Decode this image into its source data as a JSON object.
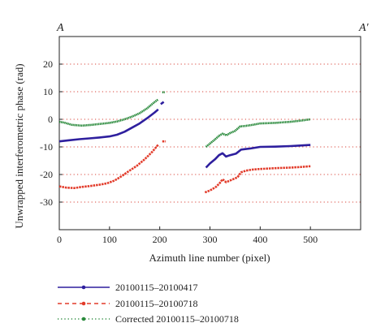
{
  "corner_labels": {
    "left": "A",
    "right": "A′"
  },
  "chart_data": {
    "type": "line",
    "title": "",
    "xlabel": "Azimuth line number (pixel)",
    "ylabel": "Unwrapped interferometric phase (rad)",
    "xlim": [
      0,
      600
    ],
    "ylim": [
      -40,
      30
    ],
    "xticks": [
      0,
      100,
      200,
      300,
      400,
      500
    ],
    "yticks": [
      20,
      10,
      0,
      -10,
      -20,
      -30
    ],
    "grid": "horizontal dotted red",
    "legend": "bottom-left, below plot",
    "series": [
      {
        "name": "20100115–20100417",
        "color": "#2e1f9e",
        "style": "solid",
        "segments": [
          [
            [
              0,
              -8
            ],
            [
              20,
              -7.6
            ],
            [
              40,
              -7.2
            ],
            [
              60,
              -6.9
            ],
            [
              80,
              -6.6
            ],
            [
              100,
              -6.2
            ],
            [
              115,
              -5.6
            ],
            [
              130,
              -4.5
            ],
            [
              145,
              -3
            ],
            [
              160,
              -1.5
            ],
            [
              175,
              0.4
            ],
            [
              190,
              2.5
            ],
            [
              197,
              3.6
            ]
          ],
          [
            [
              202,
              5.5
            ],
            [
              208,
              6.3
            ]
          ],
          [
            [
              292,
              -17.5
            ],
            [
              300,
              -16
            ],
            [
              310,
              -14.5
            ],
            [
              318,
              -13
            ],
            [
              325,
              -12.3
            ],
            [
              332,
              -13.5
            ],
            [
              340,
              -13
            ],
            [
              352,
              -12.4
            ],
            [
              362,
              -11
            ],
            [
              370,
              -10.8
            ],
            [
              380,
              -10.6
            ],
            [
              400,
              -10
            ],
            [
              430,
              -9.9
            ],
            [
              460,
              -9.7
            ],
            [
              480,
              -9.5
            ],
            [
              500,
              -9.3
            ]
          ]
        ]
      },
      {
        "name": "20100115–20100718",
        "color": "#e23b2a",
        "style": "dashed",
        "segments": [
          [
            [
              0,
              -24.3
            ],
            [
              15,
              -24.8
            ],
            [
              30,
              -24.9
            ],
            [
              45,
              -24.5
            ],
            [
              60,
              -24.2
            ],
            [
              80,
              -23.7
            ],
            [
              95,
              -23.2
            ],
            [
              110,
              -22.2
            ],
            [
              125,
              -20.5
            ],
            [
              140,
              -18.6
            ],
            [
              155,
              -16.8
            ],
            [
              170,
              -14.5
            ],
            [
              185,
              -11.8
            ],
            [
              197,
              -9.2
            ]
          ],
          [
            [
              205,
              -8
            ],
            [
              212,
              -8
            ]
          ],
          [
            [
              290,
              -26.5
            ],
            [
              300,
              -25.8
            ],
            [
              312,
              -24.5
            ],
            [
              320,
              -23
            ],
            [
              325,
              -21.7
            ],
            [
              332,
              -22.8
            ],
            [
              345,
              -21.8
            ],
            [
              355,
              -21
            ],
            [
              362,
              -19.2
            ],
            [
              372,
              -18.6
            ],
            [
              385,
              -18.2
            ],
            [
              400,
              -18
            ],
            [
              430,
              -17.7
            ],
            [
              460,
              -17.5
            ],
            [
              480,
              -17.3
            ],
            [
              500,
              -17
            ]
          ]
        ]
      },
      {
        "name": "Corrected 20100115–20100718",
        "color": "#2a8a3c",
        "style": "dotted",
        "segments": [
          [
            [
              0,
              -0.9
            ],
            [
              10,
              -1.2
            ],
            [
              25,
              -2
            ],
            [
              45,
              -2.3
            ],
            [
              65,
              -2
            ],
            [
              85,
              -1.6
            ],
            [
              100,
              -1.3
            ],
            [
              115,
              -0.8
            ],
            [
              130,
              0
            ],
            [
              145,
              1
            ],
            [
              160,
              2.2
            ],
            [
              175,
              4
            ],
            [
              190,
              6.3
            ],
            [
              197,
              7.2
            ]
          ],
          [
            [
              205,
              9.8
            ],
            [
              210,
              9.8
            ]
          ],
          [
            [
              292,
              -10
            ],
            [
              300,
              -8.8
            ],
            [
              310,
              -7.3
            ],
            [
              318,
              -6
            ],
            [
              325,
              -5.2
            ],
            [
              333,
              -5.8
            ],
            [
              340,
              -5
            ],
            [
              350,
              -4.2
            ],
            [
              360,
              -2.6
            ],
            [
              370,
              -2.4
            ],
            [
              385,
              -2
            ],
            [
              400,
              -1.5
            ],
            [
              430,
              -1.3
            ],
            [
              460,
              -0.9
            ],
            [
              480,
              -0.5
            ],
            [
              500,
              0
            ]
          ]
        ]
      }
    ]
  }
}
